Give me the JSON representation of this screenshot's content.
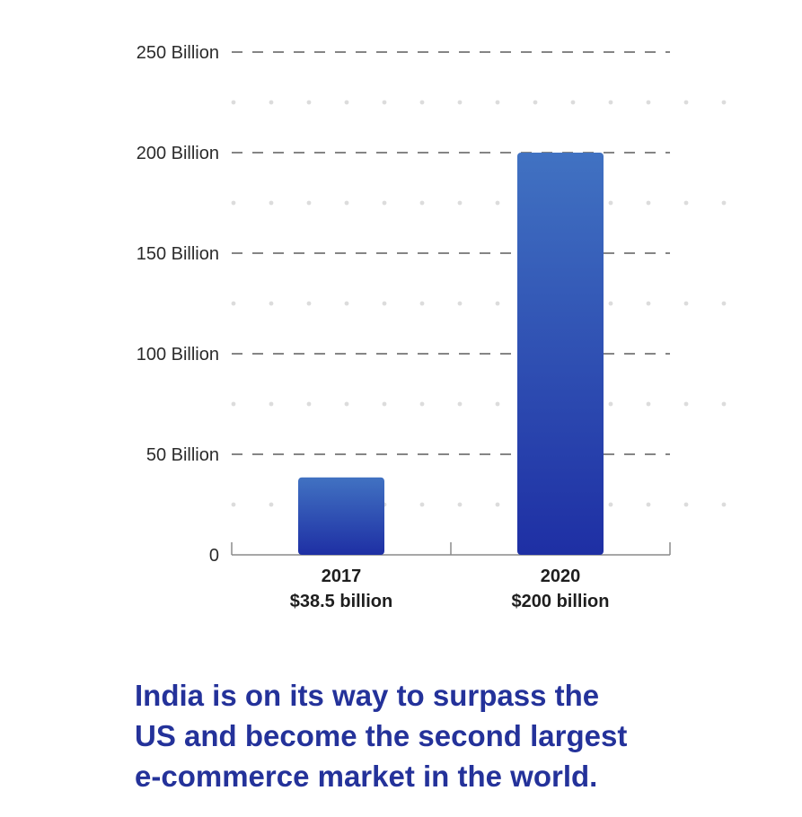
{
  "chart_data": {
    "type": "bar",
    "categories": [
      "2017",
      "2020"
    ],
    "value_labels": [
      "$38.5 billion",
      "$200 billion"
    ],
    "values": [
      38.5,
      200
    ],
    "unit": "billion USD",
    "ylim": [
      0,
      250
    ],
    "y_ticks": [
      0,
      50,
      100,
      150,
      200,
      250
    ],
    "y_tick_labels": [
      "0",
      "50 Billion",
      "100 Billion",
      "150 Billion",
      "200 Billion",
      "250 Billion"
    ],
    "title": "",
    "xlabel": "",
    "ylabel": "",
    "grid": true,
    "grid_style": "dashed major lines with dotted minor rows",
    "bar_gradient": [
      "#4172c2",
      "#1e2fa4"
    ]
  },
  "caption": {
    "lines": [
      "India is on its way to surpass the",
      "US and become the second largest",
      "e-commerce market in the world."
    ],
    "color": "#24329a"
  }
}
